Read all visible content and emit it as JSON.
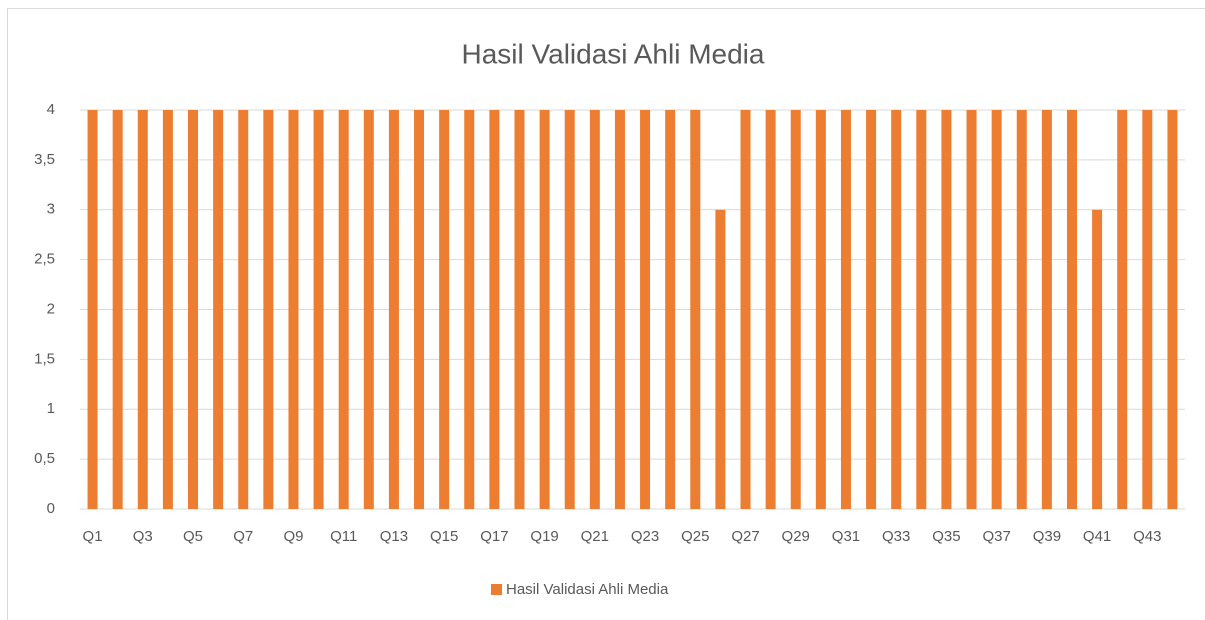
{
  "chart_data": {
    "type": "bar",
    "title": "Hasil Validasi Ahli Media",
    "categories": [
      "Q1",
      null,
      "Q3",
      null,
      "Q5",
      null,
      "Q7",
      null,
      "Q9",
      null,
      "Q11",
      null,
      "Q13",
      null,
      "Q15",
      null,
      "Q17",
      null,
      "Q19",
      null,
      "Q21",
      null,
      "Q23",
      null,
      "Q25",
      null,
      "Q27",
      null,
      "Q29",
      null,
      "Q31",
      null,
      "Q33",
      null,
      "Q35",
      null,
      "Q37",
      null,
      "Q39",
      null,
      "Q41",
      null,
      "Q43",
      null
    ],
    "series": [
      {
        "name": "Hasil Validasi Ahli Media",
        "color": "#ed7d31",
        "values": [
          4,
          4,
          4,
          4,
          4,
          4,
          4,
          4,
          4,
          4,
          4,
          4,
          4,
          4,
          4,
          4,
          4,
          4,
          4,
          4,
          4,
          4,
          4,
          4,
          4,
          3,
          4,
          4,
          4,
          4,
          4,
          4,
          4,
          4,
          4,
          4,
          4,
          4,
          4,
          4,
          3,
          4,
          4,
          4
        ]
      }
    ],
    "ylim": [
      0,
      4
    ],
    "yticks": [
      0,
      {
        "value": 0.5,
        "label": "0,5"
      },
      1,
      {
        "value": 1.5,
        "label": "1,5"
      },
      2,
      {
        "value": 2.5,
        "label": "2,5"
      },
      3,
      {
        "value": 3.5,
        "label": "3,5"
      },
      4
    ],
    "grid": true,
    "legend": "bottom"
  }
}
